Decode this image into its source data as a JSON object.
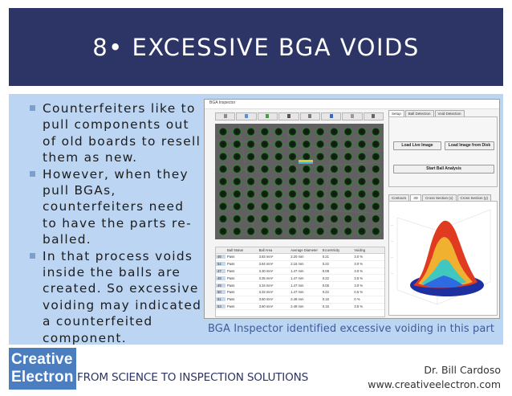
{
  "slide": {
    "title": "8• EXCESSIVE BGA VOIDS",
    "bullets": [
      "Counterfeiters like to pull components out of old boards to resell them as new.",
      "However, when they pull BGAs, counterfeiters need to have the parts re-balled.",
      "In that process voids inside the balls are created. So excessive voiding may indicated a counterfeited component."
    ],
    "caption": "BGA Inspector identified excessive voiding in this part"
  },
  "screenshot": {
    "window_title": "BGA Inspector",
    "top_tabs": [
      "Setup",
      "Ball Detection",
      "Void Detection"
    ],
    "buttons": {
      "load_live": "Load Live Image",
      "load_disk": "Load Image from Disk",
      "start": "Start Ball Analysis"
    },
    "bottom_tabs": [
      "Contours",
      "3D",
      "Cross Section (x)",
      "Cross Section (y)"
    ],
    "table": {
      "headers": [
        "",
        "Ball Status",
        "Ball Area",
        "Average Diameter",
        "Eccentricity",
        "Voiding"
      ],
      "rows": [
        [
          "46",
          "Pass",
          "3.83 mm²",
          "2.20 mm",
          "0.21",
          "3.0 %"
        ],
        [
          "52",
          "Pass",
          "3.64 mm²",
          "2.15 mm",
          "0.22",
          "3.0 %"
        ],
        [
          "47",
          "Pass",
          "3.30 mm²",
          "1.47 mm",
          "0.08",
          "3.0 %"
        ],
        [
          "48",
          "Pass",
          "3.35 mm²",
          "1.47 mm",
          "0.22",
          "3.5 %"
        ],
        [
          "49",
          "Pass",
          "3.34 mm²",
          "1.47 mm",
          "0.05",
          "3.0 %"
        ],
        [
          "50",
          "Pass",
          "3.33 mm²",
          "1.47 mm",
          "0.22",
          "0.5 %"
        ],
        [
          "51",
          "Pass",
          "3.60 mm²",
          "2.49 mm",
          "0.15",
          "0 %"
        ],
        [
          "53",
          "Pass",
          "3.60 mm²",
          "2.49 mm",
          "0.15",
          "3.5 %"
        ]
      ]
    }
  },
  "footer": {
    "logo_line1": "Creative",
    "logo_line2": "Electron",
    "tagline": "FROM SCIENCE TO INSPECTION SOLUTIONS",
    "author": "Dr. Bill Cardoso",
    "website": "www.creativeelectron.com"
  },
  "colors": {
    "title_bar": "#2c3566",
    "content_bg": "#bcd5f2",
    "logo_bg": "#4a7ec0",
    "caption": "#3d5b98"
  }
}
